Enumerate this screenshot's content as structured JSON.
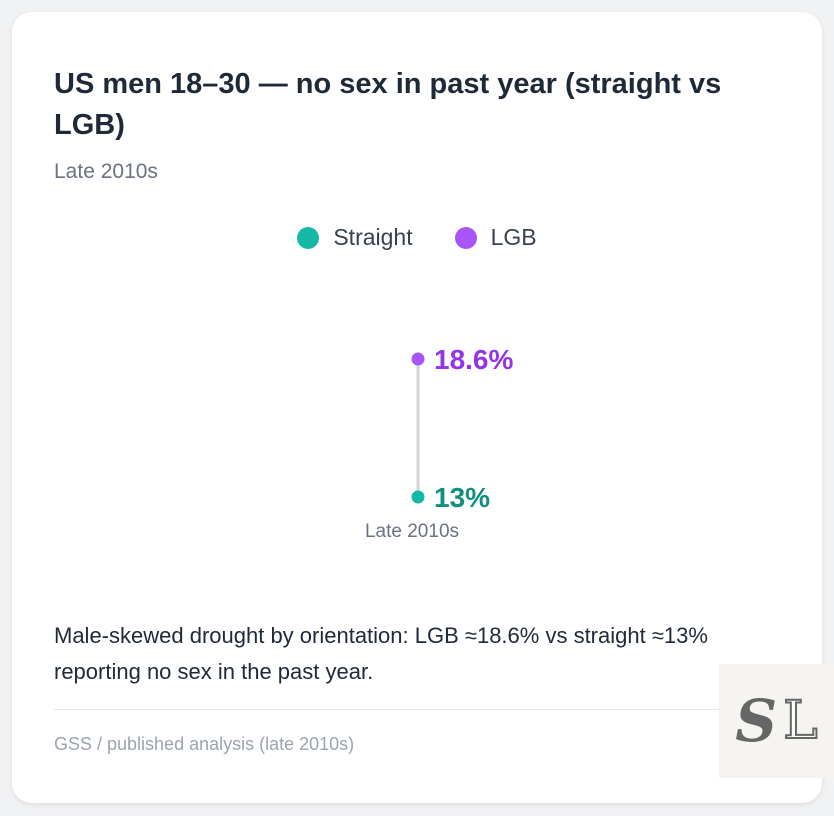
{
  "title": "US men 18–30 — no sex in past year (straight vs LGB)",
  "subtitle": "Late 2010s",
  "chart_data": {
    "type": "dot",
    "title": "US men 18–30 — no sex in past year (straight vs LGB)",
    "categories": [
      "Late 2010s"
    ],
    "series": [
      {
        "name": "Straight",
        "values": [
          13
        ],
        "label": "13%",
        "color": "#14b8a6",
        "label_color": "#0f8f80"
      },
      {
        "name": "LGB",
        "values": [
          18.6
        ],
        "label": "18.6%",
        "color": "#a855f7",
        "label_color": "#9333ea"
      }
    ],
    "legend": "top-center",
    "grid": false
  },
  "caption": "Male-skewed drought by orientation: LGB ≈18.6% vs straight ≈13% reporting no sex in the past year.",
  "source": "GSS / published analysis (late 2010s)",
  "watermark": "SL"
}
